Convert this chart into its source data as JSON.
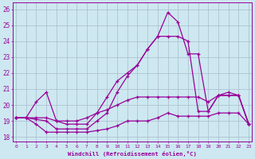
{
  "bg_color": "#cde8f0",
  "line_color": "#990099",
  "grid_color": "#aabbcc",
  "xlabel": "Windchill (Refroidissement éolien,°C)",
  "y_ticks": [
    18,
    19,
    20,
    21,
    22,
    23,
    24,
    25,
    26
  ],
  "x_ticks": [
    0,
    1,
    2,
    3,
    4,
    5,
    6,
    7,
    8,
    9,
    10,
    11,
    12,
    13,
    14,
    15,
    16,
    17,
    18,
    19,
    20,
    21,
    22,
    23
  ],
  "ylim": [
    17.7,
    26.4
  ],
  "xlim": [
    -0.3,
    23.3
  ],
  "line_top": [
    19.2,
    19.2,
    20.2,
    20.8,
    19.0,
    18.8,
    18.8,
    18.8,
    19.5,
    20.5,
    21.5,
    22.0,
    22.5,
    23.5,
    24.3,
    25.8,
    25.2,
    23.2,
    23.2,
    19.6,
    20.6,
    20.6,
    20.6,
    18.8
  ],
  "line2": [
    19.2,
    19.2,
    19.1,
    19.0,
    18.5,
    18.5,
    18.5,
    18.5,
    19.0,
    19.5,
    20.8,
    21.8,
    22.5,
    23.5,
    24.3,
    24.3,
    24.3,
    24.0,
    19.6,
    19.6,
    20.6,
    20.6,
    20.6,
    18.8
  ],
  "line3": [
    19.2,
    19.2,
    19.2,
    19.2,
    19.0,
    19.0,
    19.0,
    19.2,
    19.5,
    19.7,
    20.0,
    20.3,
    20.5,
    20.5,
    20.5,
    20.5,
    20.5,
    20.5,
    20.5,
    20.2,
    20.6,
    20.8,
    20.6,
    18.8
  ],
  "line_bot": [
    19.2,
    19.2,
    18.8,
    18.3,
    18.3,
    18.3,
    18.3,
    18.3,
    18.4,
    18.5,
    18.7,
    19.0,
    19.0,
    19.0,
    19.2,
    19.5,
    19.3,
    19.3,
    19.3,
    19.3,
    19.5,
    19.5,
    19.5,
    18.8
  ]
}
